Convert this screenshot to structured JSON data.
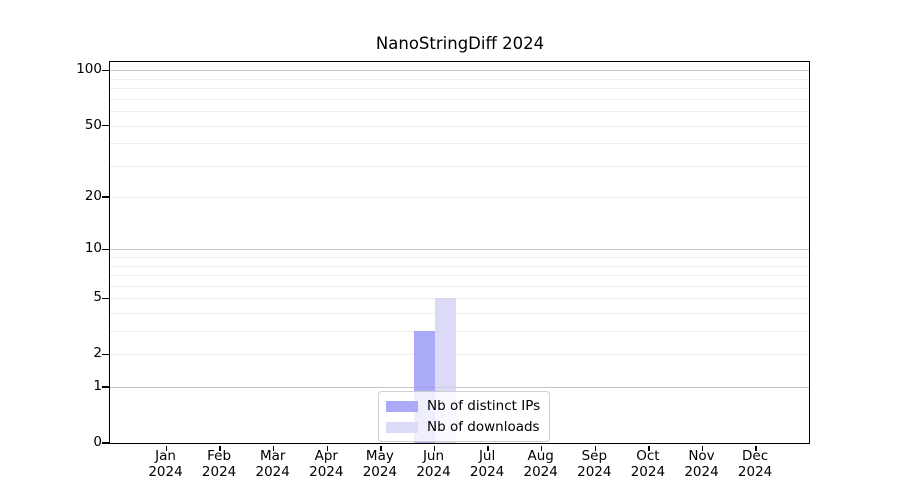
{
  "chart_data": {
    "type": "bar",
    "title": "NanoStringDiff 2024",
    "xlabel": "",
    "ylabel": "",
    "yscale": "log1p",
    "ylim": [
      0,
      111
    ],
    "yticks": [
      100,
      50,
      20,
      10,
      5,
      2,
      1,
      0
    ],
    "major_gridlines": [
      1,
      10,
      100
    ],
    "minor_gridlines": [
      2,
      3,
      4,
      5,
      6,
      7,
      8,
      9,
      20,
      30,
      40,
      50,
      60,
      70,
      80,
      90
    ],
    "grid": "on",
    "categories": [
      "Jan",
      "Feb",
      "Mar",
      "Apr",
      "May",
      "Jun",
      "Jul",
      "Aug",
      "Sep",
      "Oct",
      "Nov",
      "Dec"
    ],
    "category_year": "2024",
    "series": [
      {
        "name": "Nb of distinct IPs",
        "slug": "distinct-ips",
        "color": "#aaaaf8",
        "fill": "rgba(149,149,246,0.8)",
        "values": [
          0,
          0,
          0,
          0,
          0,
          3,
          0,
          0,
          0,
          0,
          0,
          0
        ]
      },
      {
        "name": "Nb of downloads",
        "slug": "downloads",
        "color": "#dbdbf8",
        "fill": "rgba(210,210,246,0.8)",
        "values": [
          0,
          0,
          0,
          0,
          0,
          5,
          0,
          0,
          0,
          0,
          0,
          0
        ]
      }
    ],
    "legend": {
      "position": "lower center"
    }
  },
  "colors": {
    "background": "#ffffff",
    "spine": "#000000",
    "major_grid": "#c4c4c4",
    "minor_grid": "#ededed",
    "legend_border": "#cfcfcf"
  }
}
